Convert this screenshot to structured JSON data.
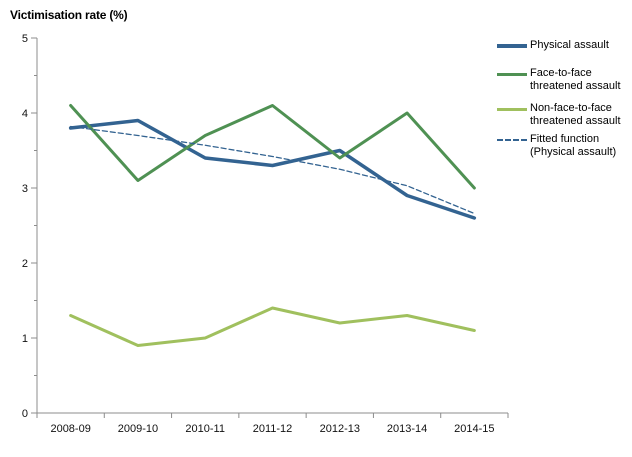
{
  "title": "Victimisation rate (%)",
  "colors": {
    "physical_assault": "#336391",
    "face_to_face": "#4F9153",
    "non_face_to_face": "#A0C05E",
    "fitted": "#336391",
    "axis": "#8C8C8C",
    "tick_text": "#111111"
  },
  "chart_data": {
    "type": "line",
    "title": "Victimisation rate (%)",
    "xlabel": "",
    "ylabel": "Victimisation rate (%)",
    "categories": [
      "2008-09",
      "2009-10",
      "2010-11",
      "2011-12",
      "2012-13",
      "2013-14",
      "2014-15"
    ],
    "series": [
      {
        "name": "Physical assault",
        "color": "#336391",
        "width": 3.5,
        "dash": "",
        "values": [
          3.8,
          3.9,
          3.4,
          3.3,
          3.5,
          2.9,
          2.6
        ]
      },
      {
        "name": "Face-to-face threatened assault",
        "color": "#4F9153",
        "width": 3,
        "dash": "",
        "values": [
          4.1,
          3.1,
          3.7,
          4.1,
          3.4,
          4.0,
          3.0
        ]
      },
      {
        "name": "Non-face-to-face threatened assault",
        "color": "#A0C05E",
        "width": 3,
        "dash": "",
        "values": [
          1.3,
          0.9,
          1.0,
          1.4,
          1.2,
          1.3,
          1.1
        ]
      },
      {
        "name": "Fitted function (Physical assault)",
        "color": "#336391",
        "width": 1.3,
        "dash": "5,3",
        "values": [
          3.82,
          3.7,
          3.57,
          3.42,
          3.25,
          3.03,
          2.66
        ]
      }
    ],
    "ylim": [
      0,
      5
    ],
    "yticks": [
      0,
      1,
      2,
      3,
      4,
      5
    ],
    "y_minor_step": 0.5,
    "grid": false,
    "legend_position": "right"
  },
  "legend": {
    "items": [
      {
        "label": "Physical assault"
      },
      {
        "label": "Face-to-face threatened assault"
      },
      {
        "label": "Non-face-to-face threatened assault"
      },
      {
        "label": "Fitted function (Physical assault)"
      }
    ]
  }
}
